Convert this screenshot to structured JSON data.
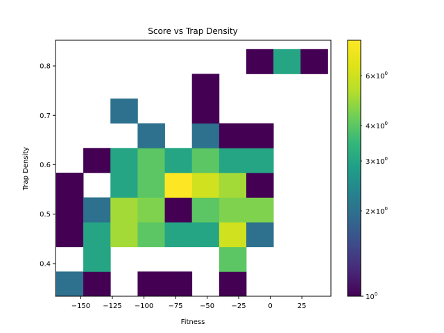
{
  "chart_data": {
    "type": "heatmap",
    "title": "Score vs Trap Density",
    "xlabel": "Fitness",
    "ylabel": "Trap Density",
    "xlim": [
      -170,
      48
    ],
    "ylim": [
      0.334,
      0.852
    ],
    "x_edges": [
      -169.5,
      -148.0,
      -126.5,
      -105.0,
      -83.5,
      -62.0,
      -40.5,
      -19.0,
      2.5,
      24.0,
      45.5
    ],
    "y_edges": [
      0.334,
      0.384,
      0.434,
      0.484,
      0.534,
      0.584,
      0.634,
      0.684,
      0.734,
      0.784,
      0.834
    ],
    "x_ticks": [
      -150,
      -125,
      -100,
      -75,
      -50,
      -25,
      0,
      25
    ],
    "x_tick_labels": [
      "−150",
      "−125",
      "−100",
      "−75",
      "−50",
      "−25",
      "0",
      "25"
    ],
    "y_ticks": [
      0.4,
      0.5,
      0.6,
      0.7,
      0.8
    ],
    "y_tick_labels": [
      "0.4",
      "0.5",
      "0.6",
      "0.7",
      "0.8"
    ],
    "grid": false,
    "counts": [
      [
        2,
        1,
        0,
        1,
        1,
        0,
        1,
        0,
        0,
        0
      ],
      [
        0,
        3,
        0,
        0,
        0,
        0,
        4,
        0,
        0,
        0
      ],
      [
        1,
        3,
        5,
        4,
        3,
        3,
        6,
        2,
        0,
        0
      ],
      [
        1,
        2,
        5,
        4.5,
        1,
        4,
        4.5,
        4.5,
        0,
        0
      ],
      [
        1,
        0,
        3,
        4,
        8,
        6,
        5,
        1,
        0,
        0
      ],
      [
        0,
        1,
        3,
        4,
        3,
        4,
        3,
        3,
        0,
        0
      ],
      [
        0,
        0,
        0,
        2,
        0,
        2,
        1,
        1,
        0,
        0
      ],
      [
        0,
        0,
        2,
        0,
        0,
        1,
        0,
        0,
        0,
        0
      ],
      [
        0,
        0,
        0,
        0,
        0,
        1,
        0,
        0,
        0,
        0
      ],
      [
        0,
        0,
        0,
        0,
        0,
        0,
        0,
        1,
        3,
        1
      ]
    ],
    "colorbar": {
      "scale": "log",
      "vmin": 1,
      "vmax": 8,
      "colormap": "viridis",
      "major_ticks": [
        {
          "value": 1,
          "base": "10",
          "exp": "0"
        }
      ],
      "minor_ticks": [
        {
          "value": 2,
          "mant": "2",
          "base": "10",
          "exp": "0"
        },
        {
          "value": 3,
          "mant": "3",
          "base": "10",
          "exp": "0"
        },
        {
          "value": 4,
          "mant": "4",
          "base": "10",
          "exp": "0"
        },
        {
          "value": 6,
          "mant": "6",
          "base": "10",
          "exp": "0"
        }
      ]
    }
  }
}
